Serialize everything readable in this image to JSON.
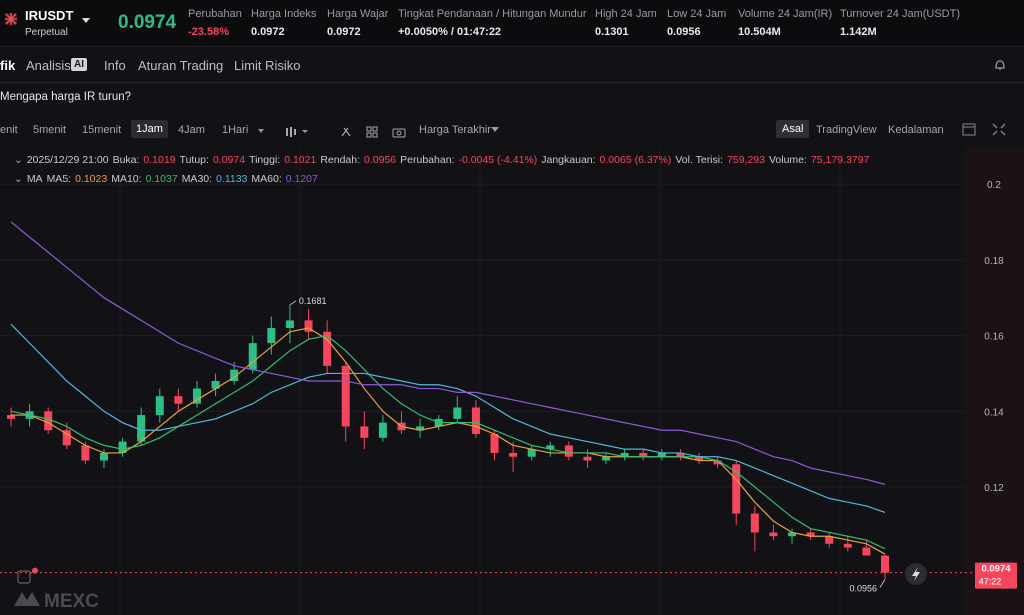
{
  "header": {
    "symbol": "IRUSDT",
    "contract": "Perpetual",
    "price": "0.0974",
    "stats": [
      {
        "label": "Perubahan",
        "value": "-23.58%"
      },
      {
        "label": "Harga Indeks",
        "value": "0.0972"
      },
      {
        "label": "Harga Wajar",
        "value": "0.0972"
      },
      {
        "label": "Tingkat Pendanaan / Hitungan Mundur",
        "value": "+0.0050% / 01:47:22"
      },
      {
        "label": "High 24 Jam",
        "value": "0.1301"
      },
      {
        "label": "Low 24 Jam",
        "value": "0.0956"
      },
      {
        "label": "Volume 24 Jam(IR)",
        "value": "10.504M"
      },
      {
        "label": "Turnover 24 Jam(USDT)",
        "value": "1.142M"
      }
    ]
  },
  "tabs": [
    "fik",
    "Analisis",
    "Info",
    "Aturan Trading",
    "Limit Risiko"
  ],
  "ai_badge": "AI",
  "note": "Mengapa harga IR turun?",
  "toolbar": {
    "intervals": [
      "enit",
      "5menit",
      "15menit",
      "1Jam",
      "4Jam",
      "1Hari"
    ],
    "price_type": "Harga Terakhir",
    "views": [
      "Asal",
      "TradingView",
      "Kedalaman"
    ]
  },
  "info": {
    "time": "2025/12/29 21:00",
    "fields": [
      {
        "label": "Buka:",
        "value": "0.1019"
      },
      {
        "label": "Tutup:",
        "value": "0.0974"
      },
      {
        "label": "Tinggi:",
        "value": "0.1021"
      },
      {
        "label": "Rendah:",
        "value": "0.0956"
      },
      {
        "label": "Perubahan:",
        "value": "-0.0045 (-4.41%)"
      },
      {
        "label": "Jangkauan:",
        "value": "0.0065 (6.37%)"
      },
      {
        "label": "Vol. Terisi:",
        "value": "759,293"
      },
      {
        "label": "Volume:",
        "value": "75,179.3797"
      }
    ]
  },
  "chart": {
    "type": "candlestick",
    "ylim": [
      0.0862,
      0.2098
    ],
    "yticks": [
      0.12,
      0.14,
      0.16,
      0.18,
      0.2
    ],
    "up_color": "#2ebd85",
    "down_color": "#f6465d",
    "candles": {
      "open": [
        0.139,
        0.138,
        0.14,
        0.135,
        0.131,
        0.127,
        0.129,
        0.132,
        0.139,
        0.144,
        0.142,
        0.146,
        0.148,
        0.151,
        0.158,
        0.162,
        0.164,
        0.161,
        0.152,
        0.136,
        0.133,
        0.137,
        0.135,
        0.136,
        0.138,
        0.141,
        0.134,
        0.129,
        0.128,
        0.13,
        0.131,
        0.128,
        0.127,
        0.128,
        0.129,
        0.128,
        0.129,
        0.128,
        0.127,
        0.126,
        0.113,
        0.108,
        0.107,
        0.108,
        0.107,
        0.105,
        0.104,
        0.1019
      ],
      "high": [
        0.141,
        0.142,
        0.141,
        0.137,
        0.132,
        0.13,
        0.133,
        0.141,
        0.146,
        0.146,
        0.148,
        0.15,
        0.153,
        0.16,
        0.165,
        0.1681,
        0.167,
        0.164,
        0.153,
        0.14,
        0.139,
        0.14,
        0.138,
        0.139,
        0.144,
        0.143,
        0.135,
        0.132,
        0.131,
        0.132,
        0.132,
        0.13,
        0.129,
        0.13,
        0.13,
        0.13,
        0.13,
        0.129,
        0.128,
        0.127,
        0.115,
        0.11,
        0.109,
        0.109,
        0.108,
        0.107,
        0.106,
        0.1021
      ],
      "low": [
        0.136,
        0.136,
        0.134,
        0.13,
        0.126,
        0.125,
        0.128,
        0.131,
        0.137,
        0.14,
        0.141,
        0.144,
        0.147,
        0.15,
        0.155,
        0.158,
        0.159,
        0.15,
        0.132,
        0.13,
        0.132,
        0.134,
        0.133,
        0.135,
        0.137,
        0.133,
        0.127,
        0.124,
        0.127,
        0.128,
        0.127,
        0.125,
        0.126,
        0.127,
        0.127,
        0.127,
        0.127,
        0.126,
        0.125,
        0.11,
        0.103,
        0.106,
        0.105,
        0.106,
        0.104,
        0.103,
        0.102,
        0.0956
      ],
      "close": [
        0.138,
        0.14,
        0.135,
        0.131,
        0.127,
        0.129,
        0.132,
        0.139,
        0.144,
        0.142,
        0.146,
        0.148,
        0.151,
        0.158,
        0.162,
        0.164,
        0.161,
        0.152,
        0.136,
        0.133,
        0.137,
        0.135,
        0.136,
        0.138,
        0.141,
        0.134,
        0.129,
        0.128,
        0.13,
        0.131,
        0.128,
        0.127,
        0.128,
        0.129,
        0.128,
        0.129,
        0.128,
        0.127,
        0.126,
        0.113,
        0.108,
        0.107,
        0.108,
        0.107,
        0.105,
        0.104,
        0.1019,
        0.0974
      ]
    },
    "ma_title": "MA",
    "ma": [
      {
        "name": "MA5:",
        "label": "0.1023",
        "color": "#e6a23c",
        "values": [
          0.139,
          0.139,
          0.137,
          0.134,
          0.131,
          0.129,
          0.129,
          0.132,
          0.136,
          0.14,
          0.143,
          0.146,
          0.149,
          0.153,
          0.157,
          0.161,
          0.162,
          0.159,
          0.153,
          0.146,
          0.14,
          0.136,
          0.135,
          0.136,
          0.137,
          0.136,
          0.134,
          0.131,
          0.13,
          0.129,
          0.129,
          0.129,
          0.128,
          0.128,
          0.128,
          0.128,
          0.128,
          0.127,
          0.127,
          0.122,
          0.116,
          0.111,
          0.108,
          0.107,
          0.107,
          0.106,
          0.105,
          0.1023
        ]
      },
      {
        "name": "MA10:",
        "label": "0.1037",
        "color": "#2fbf71",
        "values": [
          0.14,
          0.139,
          0.138,
          0.136,
          0.133,
          0.131,
          0.13,
          0.131,
          0.133,
          0.136,
          0.139,
          0.142,
          0.145,
          0.148,
          0.152,
          0.156,
          0.159,
          0.16,
          0.156,
          0.151,
          0.146,
          0.142,
          0.139,
          0.137,
          0.137,
          0.137,
          0.135,
          0.133,
          0.131,
          0.13,
          0.129,
          0.129,
          0.129,
          0.128,
          0.128,
          0.128,
          0.128,
          0.128,
          0.127,
          0.124,
          0.12,
          0.116,
          0.112,
          0.109,
          0.108,
          0.107,
          0.106,
          0.1037
        ]
      },
      {
        "name": "MA30:",
        "label": "0.1133",
        "color": "#4fb8d6",
        "values": [
          0.163,
          0.158,
          0.153,
          0.148,
          0.144,
          0.14,
          0.137,
          0.135,
          0.135,
          0.136,
          0.137,
          0.138,
          0.14,
          0.142,
          0.145,
          0.147,
          0.149,
          0.15,
          0.15,
          0.15,
          0.149,
          0.148,
          0.147,
          0.147,
          0.146,
          0.144,
          0.141,
          0.138,
          0.136,
          0.134,
          0.133,
          0.132,
          0.131,
          0.13,
          0.13,
          0.129,
          0.129,
          0.128,
          0.128,
          0.127,
          0.125,
          0.123,
          0.121,
          0.119,
          0.117,
          0.116,
          0.115,
          0.1133
        ]
      },
      {
        "name": "MA60:",
        "label": "0.1207",
        "color": "#8e5bd6",
        "values": [
          0.19,
          0.186,
          0.182,
          0.178,
          0.174,
          0.17,
          0.167,
          0.164,
          0.161,
          0.158,
          0.156,
          0.154,
          0.152,
          0.151,
          0.15,
          0.149,
          0.148,
          0.148,
          0.148,
          0.147,
          0.147,
          0.147,
          0.146,
          0.146,
          0.145,
          0.145,
          0.144,
          0.143,
          0.142,
          0.141,
          0.14,
          0.139,
          0.138,
          0.137,
          0.136,
          0.135,
          0.135,
          0.134,
          0.133,
          0.132,
          0.13,
          0.128,
          0.127,
          0.125,
          0.124,
          0.123,
          0.122,
          0.1207
        ]
      }
    ],
    "high_label": "0.1681",
    "low_label": "0.0956",
    "price_tag": "0.0974",
    "countdown": "47:22"
  },
  "watermark": "MEXC"
}
